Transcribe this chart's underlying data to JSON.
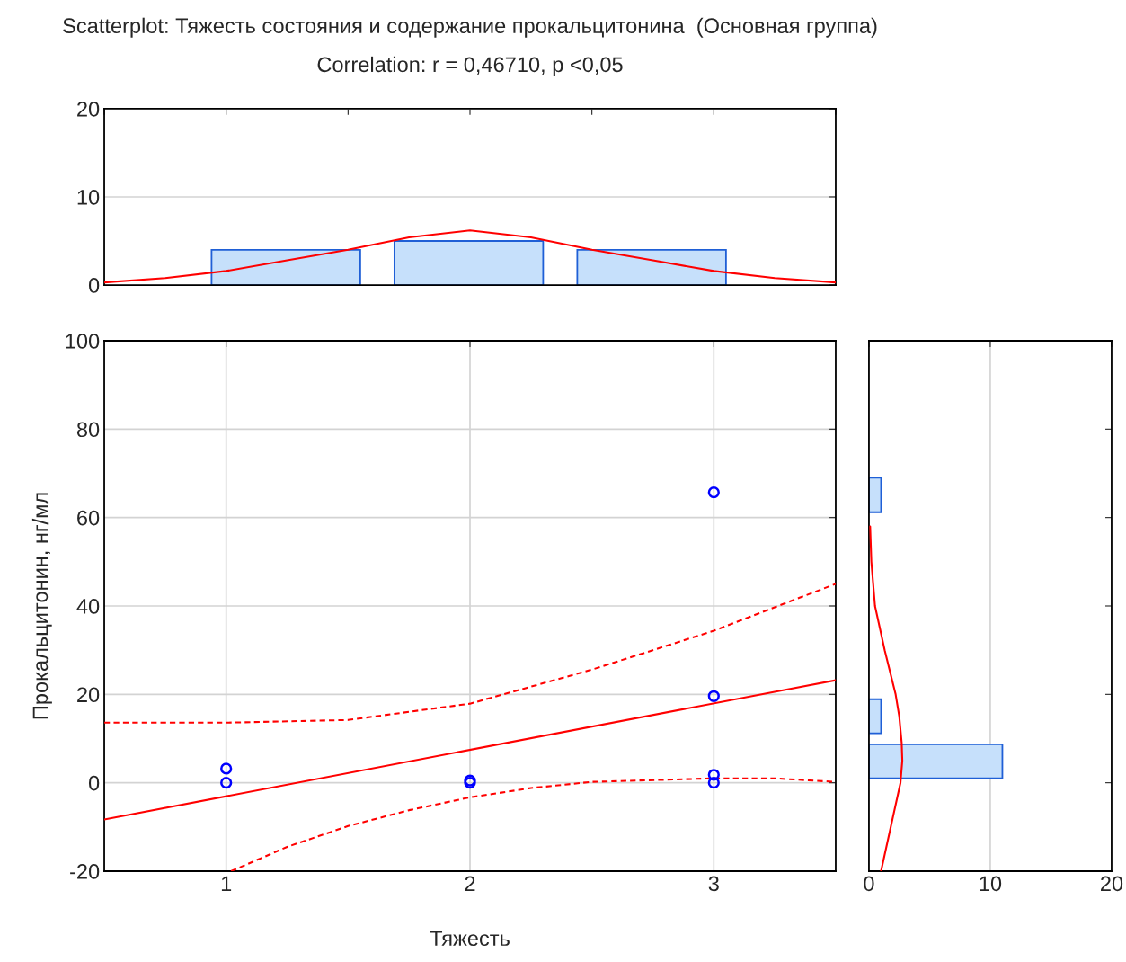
{
  "chart_data": [
    {
      "type": "histogram",
      "title": "Scatterplot: Тяжесть состояния и содержание прокальцитонина  (Основная группа)",
      "subtitle": "Correlation: r = 0,46710, p <0,05",
      "xlim": [
        0.5,
        3.5
      ],
      "ylim": [
        0,
        20
      ],
      "yticks": [
        0,
        10,
        20
      ],
      "xticks": [
        {
          "value": 0.5,
          "label": null
        },
        {
          "value": 1,
          "label": null
        },
        {
          "value": 1.5,
          "label": null
        },
        {
          "value": 2,
          "label": null
        },
        {
          "value": 2.5,
          "label": null
        },
        {
          "value": 3,
          "label": null
        },
        {
          "value": 3.5,
          "label": null
        }
      ],
      "tick_labels": "y",
      "grid": "y",
      "series": [
        {
          "color": "#c6e0fb",
          "bins": [
            0.94,
            1.55,
            1.69,
            2.3,
            2.44,
            3.05
          ],
          "values": [
            4,
            0,
            5,
            0,
            4
          ]
        },
        {
          "type": "line",
          "color": "#ff0000",
          "x": [
            0.5,
            0.75,
            1,
            1.25,
            1.5,
            1.75,
            2,
            2.25,
            2.5,
            2.75,
            3,
            3.25,
            3.5
          ],
          "values": [
            0.3,
            0.8,
            1.6,
            2.8,
            4.0,
            5.4,
            6.2,
            5.4,
            4.0,
            2.8,
            1.6,
            0.8,
            0.3
          ]
        }
      ]
    },
    {
      "type": "scatter",
      "xlabel": "Тяжесть",
      "ylabel": "Прокальцитонин, нг/мл",
      "xlim": [
        0.5,
        3.5
      ],
      "ylim": [
        -20,
        100
      ],
      "xticks": [
        1,
        2,
        3
      ],
      "yticks": [
        -20,
        0,
        20,
        40,
        60,
        80,
        100
      ],
      "grid": true,
      "series": [
        {
          "color": "#0000ff",
          "marker": "circle",
          "x": [
            1,
            1,
            2,
            2,
            3,
            3,
            3,
            3
          ],
          "values": [
            3.2,
            0,
            0.5,
            0,
            65.7,
            19.6,
            1.8,
            0
          ]
        },
        {
          "type": "line",
          "color": "#ff0000",
          "line_style": "solid",
          "x": [
            0.5,
            3.5
          ],
          "values": [
            -8.3,
            23.2
          ]
        },
        {
          "type": "line",
          "color": "#ff0000",
          "line_style": "dashed",
          "x": [
            0.5,
            1,
            1.5,
            2,
            2.5,
            3,
            3.5
          ],
          "values": [
            13.6,
            13.6,
            14.2,
            17.9,
            25.6,
            34.4,
            45
          ]
        },
        {
          "type": "line",
          "color": "#ff0000",
          "line_style": "dashed",
          "x": [
            1.02,
            1.25,
            1.5,
            1.75,
            2,
            2.25,
            2.5,
            3,
            3.25,
            3.5
          ],
          "values": [
            -20,
            -14.5,
            -9.8,
            -6.2,
            -3.3,
            -1.2,
            0.2,
            1.0,
            1.0,
            0.2
          ]
        }
      ]
    },
    {
      "type": "histogram",
      "orientation": "horizontal",
      "xlim": [
        0,
        20
      ],
      "xticks": [
        0,
        10,
        20
      ],
      "ylim": [
        -20,
        100
      ],
      "yticks": [
        {
          "value": -20,
          "label": null
        },
        {
          "value": 0,
          "label": null
        },
        {
          "value": 20,
          "label": null
        },
        {
          "value": 40,
          "label": null
        },
        {
          "value": 60,
          "label": null
        },
        {
          "value": 80,
          "label": null
        },
        {
          "value": 100,
          "label": null
        }
      ],
      "tick_labels": "x",
      "grid": "x",
      "series": [
        {
          "color": "#c6e0fb",
          "bins": [
            1.0,
            8.7,
            11.2,
            18.9,
            61.2,
            69.0
          ],
          "values": [
            11,
            0,
            1,
            0,
            1
          ]
        },
        {
          "type": "line",
          "color": "#ff0000",
          "x": [
            -20,
            -10,
            0,
            5,
            9,
            15,
            20,
            30,
            40,
            50,
            58
          ],
          "values": [
            1.0,
            1.8,
            2.6,
            2.75,
            2.7,
            2.5,
            2.2,
            1.3,
            0.5,
            0.2,
            0.1
          ]
        }
      ]
    }
  ]
}
